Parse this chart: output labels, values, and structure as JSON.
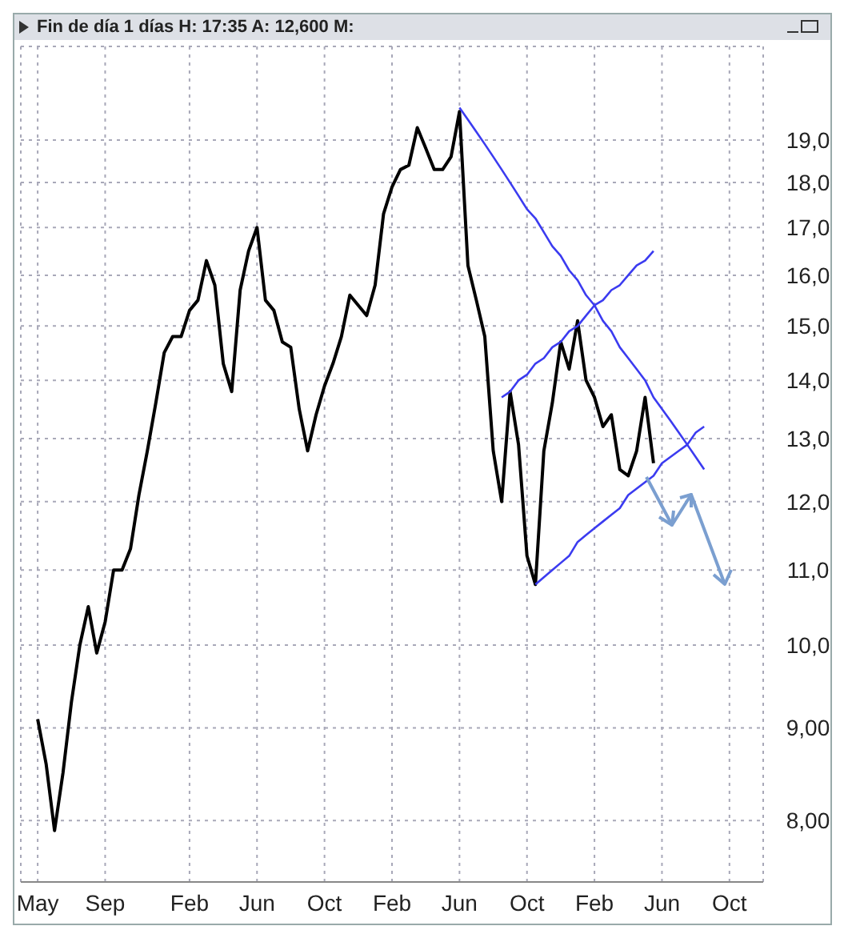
{
  "chart_data": {
    "type": "line",
    "title": "Fin de día 1 días H: 17:35 A: 12,600 M:",
    "log": "y",
    "grid": true,
    "marker": "none",
    "categories": [
      "May",
      null,
      null,
      null,
      null,
      null,
      null,
      null,
      "Sep",
      null,
      null,
      null,
      null,
      null,
      null,
      null,
      null,
      null,
      "Feb",
      null,
      null,
      null,
      null,
      null,
      null,
      null,
      "Jun",
      null,
      null,
      null,
      null,
      null,
      null,
      null,
      "Oct",
      null,
      null,
      null,
      null,
      null,
      null,
      null,
      "Feb",
      null,
      null,
      null,
      null,
      null,
      null,
      null,
      "Jun",
      null,
      null,
      null,
      null,
      null,
      null,
      null,
      "Oct",
      null,
      null,
      null,
      null,
      null,
      null,
      null,
      "Feb",
      null,
      null,
      null,
      null,
      null,
      null,
      null,
      "Jun",
      null,
      null,
      null,
      null,
      null,
      null,
      null,
      "Oct",
      null,
      null,
      null
    ],
    "ylim": [
      7.4,
      21.4
    ],
    "yticks": [
      {
        "value": 8,
        "label": "8,00"
      },
      {
        "value": 9,
        "label": "9,00"
      },
      {
        "value": 10,
        "label": "10,0"
      },
      {
        "value": 11,
        "label": "11,0"
      },
      {
        "value": 12,
        "label": "12,0"
      },
      {
        "value": 13,
        "label": "13,0"
      },
      {
        "value": 14,
        "label": "14,0"
      },
      {
        "value": 15,
        "label": "15,0"
      },
      {
        "value": 16,
        "label": "16,0"
      },
      {
        "value": 17,
        "label": "17,0"
      },
      {
        "value": 18,
        "label": "18,0"
      },
      {
        "value": 19,
        "label": "19,0"
      }
    ],
    "series": [
      {
        "color": "#000000",
        "values": [
          9.1,
          8.6,
          7.9,
          8.5,
          9.3,
          10.0,
          10.5,
          9.9,
          10.3,
          11.0,
          11.0,
          11.3,
          12.1,
          12.8,
          13.6,
          14.5,
          14.8,
          14.8,
          15.3,
          15.5,
          16.3,
          15.8,
          14.3,
          13.8,
          15.7,
          16.5,
          17.0,
          15.5,
          15.3,
          14.7,
          14.6,
          13.5,
          12.8,
          13.4,
          13.9,
          14.3,
          14.8,
          15.6,
          15.4,
          15.2,
          15.8,
          17.3,
          17.9,
          18.3,
          18.4,
          19.3,
          18.8,
          18.3,
          18.3,
          18.6,
          19.7,
          16.2,
          15.5,
          14.8,
          12.8,
          12.0,
          13.8,
          12.9,
          11.2,
          10.8,
          12.8,
          13.6,
          14.7,
          14.2,
          15.1,
          14.0,
          13.7,
          13.2,
          13.4,
          12.5,
          12.4,
          12.8,
          13.7,
          12.6,
          null,
          null,
          null,
          null,
          null,
          null,
          null,
          null,
          null,
          null,
          null,
          null
        ]
      },
      {
        "type": "line",
        "color": "#3b3bf0",
        "values": [
          null,
          null,
          null,
          null,
          null,
          null,
          null,
          null,
          null,
          null,
          null,
          null,
          null,
          null,
          null,
          null,
          null,
          null,
          null,
          null,
          null,
          null,
          null,
          null,
          null,
          null,
          null,
          null,
          null,
          null,
          null,
          null,
          null,
          null,
          null,
          null,
          null,
          null,
          null,
          null,
          null,
          null,
          null,
          null,
          null,
          null,
          null,
          null,
          null,
          null,
          19.8,
          19.5,
          19.2,
          18.9,
          18.6,
          18.3,
          18.0,
          17.7,
          17.4,
          17.2,
          16.9,
          16.6,
          16.4,
          16.1,
          15.9,
          15.6,
          15.4,
          15.1,
          14.9,
          14.6,
          14.4,
          14.2,
          14.0,
          13.7,
          13.5,
          13.3,
          13.1,
          12.9,
          12.7,
          12.5,
          null,
          null,
          null,
          null,
          null,
          null
        ]
      },
      {
        "type": "line",
        "color": "#3b3bf0",
        "values": [
          null,
          null,
          null,
          null,
          null,
          null,
          null,
          null,
          null,
          null,
          null,
          null,
          null,
          null,
          null,
          null,
          null,
          null,
          null,
          null,
          null,
          null,
          null,
          null,
          null,
          null,
          null,
          null,
          null,
          null,
          null,
          null,
          null,
          null,
          null,
          null,
          null,
          null,
          null,
          null,
          null,
          null,
          null,
          null,
          null,
          null,
          null,
          null,
          null,
          null,
          null,
          null,
          null,
          null,
          null,
          13.7,
          13.8,
          14.0,
          14.1,
          14.3,
          14.4,
          14.6,
          14.7,
          14.9,
          15.0,
          15.2,
          15.4,
          15.5,
          15.7,
          15.8,
          16.0,
          16.2,
          16.3,
          16.5,
          null,
          null,
          null,
          null,
          null,
          null,
          null,
          null,
          null,
          null,
          null,
          null
        ]
      },
      {
        "type": "line",
        "color": "#3b3bf0",
        "values": [
          null,
          null,
          null,
          null,
          null,
          null,
          null,
          null,
          null,
          null,
          null,
          null,
          null,
          null,
          null,
          null,
          null,
          null,
          null,
          null,
          null,
          null,
          null,
          null,
          null,
          null,
          null,
          null,
          null,
          null,
          null,
          null,
          null,
          null,
          null,
          null,
          null,
          null,
          null,
          null,
          null,
          null,
          null,
          null,
          null,
          null,
          null,
          null,
          null,
          null,
          null,
          null,
          null,
          null,
          null,
          null,
          null,
          null,
          null,
          10.8,
          10.9,
          11.0,
          11.1,
          11.2,
          11.4,
          11.5,
          11.6,
          11.7,
          11.8,
          11.9,
          12.1,
          12.2,
          12.3,
          12.4,
          12.6,
          12.7,
          12.8,
          12.9,
          13.1,
          13.2,
          null,
          null,
          null,
          null,
          null,
          null
        ]
      }
    ]
  }
}
